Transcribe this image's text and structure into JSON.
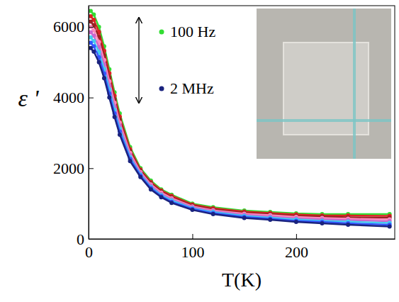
{
  "chart_data": {
    "type": "line",
    "x_label": "T(K)",
    "y_label": "ε '",
    "marker": "circle",
    "x": [
      2,
      5,
      10,
      15,
      20,
      25,
      30,
      40,
      50,
      60,
      70,
      80,
      100,
      120,
      150,
      175,
      200,
      225,
      250,
      290
    ],
    "series": [
      {
        "name": "100 Hz",
        "color": "#33dd33",
        "values": [
          6450,
          6350,
          6000,
          5450,
          4800,
          4150,
          3550,
          2600,
          2000,
          1650,
          1400,
          1250,
          1000,
          900,
          800,
          760,
          720,
          700,
          700,
          700
        ]
      },
      {
        "color": "#dd2222",
        "values": [
          6300,
          6200,
          5860,
          5320,
          4690,
          4050,
          3460,
          2540,
          1960,
          1610,
          1370,
          1220,
          975,
          870,
          770,
          730,
          690,
          660,
          660,
          650
        ]
      },
      {
        "color": "#992222",
        "values": [
          6150,
          6050,
          5710,
          5190,
          4570,
          3950,
          3380,
          2490,
          1930,
          1580,
          1340,
          1180,
          950,
          840,
          740,
          700,
          650,
          630,
          610,
          600
        ]
      },
      {
        "color": "#ff88bb",
        "values": [
          6000,
          5900,
          5570,
          5060,
          4460,
          3850,
          3290,
          2430,
          1890,
          1540,
          1310,
          1150,
          920,
          810,
          710,
          670,
          620,
          590,
          570,
          550
        ]
      },
      {
        "color": "#cc66cc",
        "values": [
          5850,
          5750,
          5430,
          4940,
          4340,
          3750,
          3210,
          2370,
          1860,
          1510,
          1270,
          1120,
          900,
          790,
          680,
          630,
          580,
          550,
          530,
          500
        ]
      },
      {
        "color": "#44ccee",
        "values": [
          5700,
          5600,
          5290,
          4810,
          4230,
          3650,
          3120,
          2310,
          1820,
          1470,
          1240,
          1090,
          870,
          760,
          650,
          600,
          550,
          510,
          490,
          450
        ]
      },
      {
        "color": "#3355ff",
        "values": [
          5550,
          5450,
          5140,
          4680,
          4110,
          3550,
          3040,
          2260,
          1790,
          1440,
          1210,
          1050,
          850,
          730,
          620,
          570,
          510,
          480,
          440,
          400
        ]
      },
      {
        "name": "2 MHz",
        "color": "#1a237e",
        "values": [
          5400,
          5300,
          5000,
          4550,
          4000,
          3450,
          2950,
          2200,
          1750,
          1400,
          1180,
          1020,
          820,
          700,
          590,
          540,
          480,
          440,
          400,
          350
        ]
      }
    ],
    "xlim": [
      0,
      295
    ],
    "xticks": [
      0,
      100,
      200
    ],
    "ylim": [
      0,
      6600
    ],
    "yticks": [
      0,
      2000,
      4000,
      6000
    ]
  }
}
